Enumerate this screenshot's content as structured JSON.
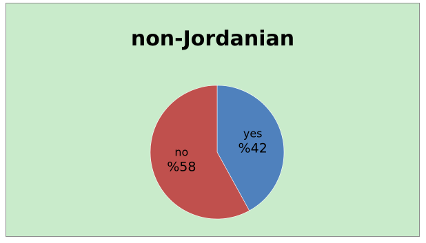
{
  "chart_data": {
    "type": "pie",
    "title": "non-Jordanian",
    "slices": [
      {
        "label": "yes",
        "value": 42,
        "display": "%42",
        "color": "#4f81bd"
      },
      {
        "label": "no",
        "value": 58,
        "display": "%58",
        "color": "#c0504d"
      }
    ],
    "legend": "none",
    "background_color": "#c9ebcb"
  }
}
